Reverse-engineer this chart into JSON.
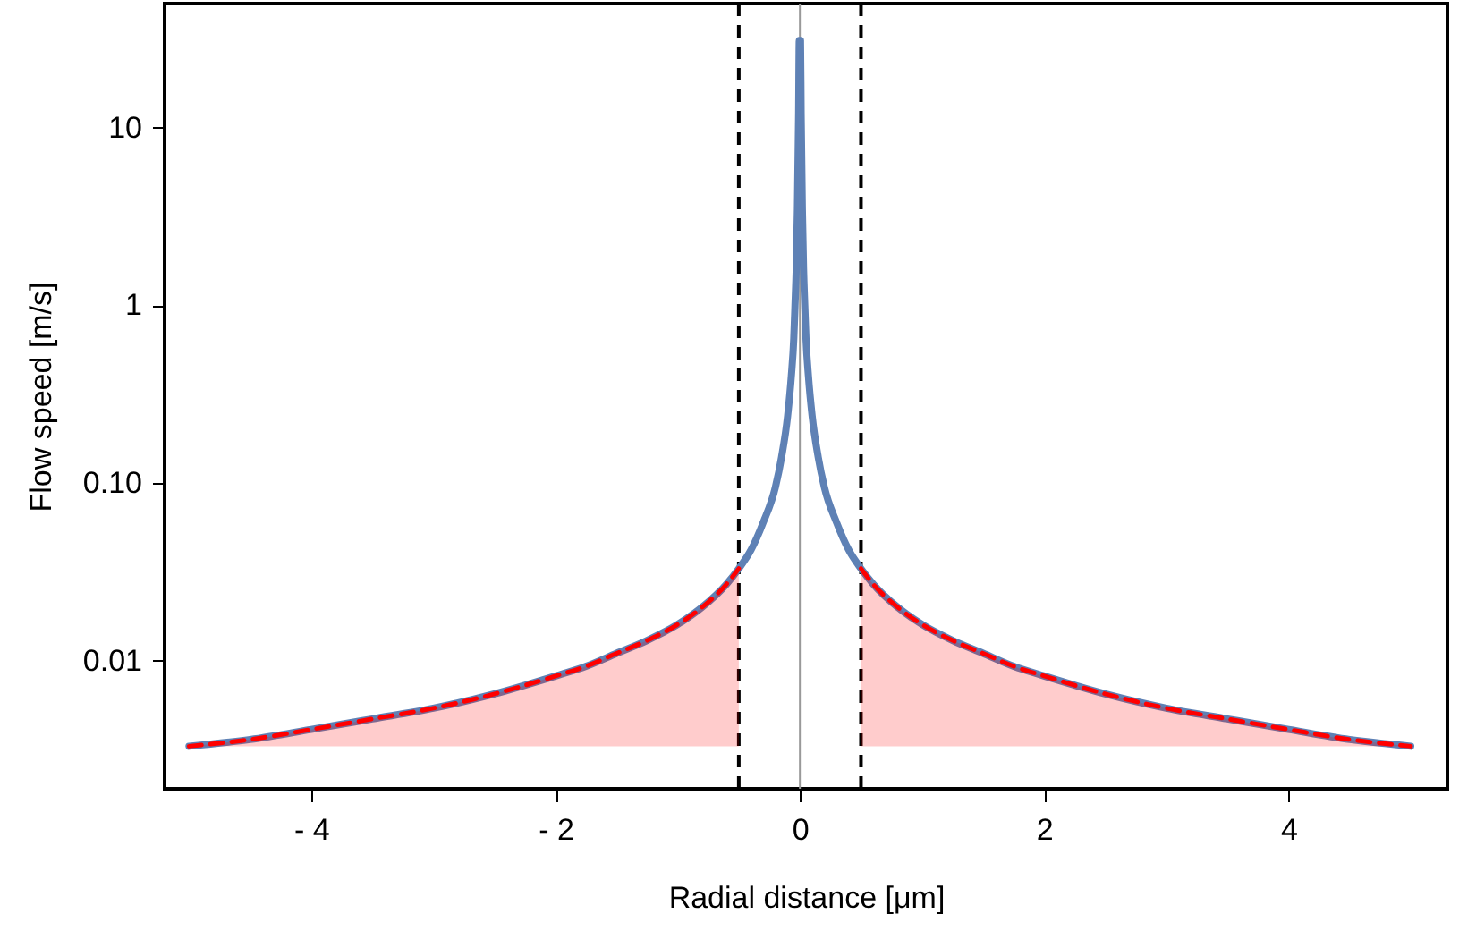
{
  "chart_data": {
    "type": "line",
    "xlabel": "Radial distance [μm]",
    "ylabel": "Flow speed [m/s]",
    "log": "y",
    "xlim": [
      -5.2,
      5.3
    ],
    "xticks": [
      {
        "value": -4,
        "label": "- 4"
      },
      {
        "value": -2,
        "label": "- 2"
      },
      0,
      2,
      4
    ],
    "ylim": [
      0.0019,
      50
    ],
    "yticks": [
      0.01,
      {
        "value": 0.1,
        "label": "0.10"
      },
      1,
      10
    ],
    "grid": false,
    "series": [
      {
        "color": "#5e81b5",
        "line_style": "solid",
        "x": [
          -5,
          -4.5,
          -4,
          -3.5,
          -3,
          -2.5,
          -2,
          -1.75,
          -1.5,
          -1.25,
          -1,
          -0.8,
          -0.6,
          -0.5,
          -0.4,
          -0.3,
          -0.2,
          -0.15,
          -0.1,
          -0.07,
          -0.05,
          -0.04,
          -0.03,
          -0.02,
          -0.01,
          -0.005,
          0.005,
          0.01,
          0.02,
          0.03,
          0.04,
          0.05,
          0.07,
          0.1,
          0.15,
          0.2,
          0.3,
          0.4,
          0.5,
          0.6,
          0.8,
          1,
          1.25,
          1.5,
          1.75,
          2,
          2.5,
          3,
          3.5,
          4,
          4.5,
          5
        ],
        "values": [
          0.0033,
          0.0036,
          0.0041,
          0.0047,
          0.0054,
          0.0065,
          0.0082,
          0.0093,
          0.011,
          0.013,
          0.016,
          0.02,
          0.027,
          0.033,
          0.042,
          0.06,
          0.095,
          0.14,
          0.24,
          0.4,
          0.65,
          1,
          1.6,
          3.5,
          12,
          31,
          31,
          12,
          3.5,
          1.6,
          1,
          0.65,
          0.4,
          0.24,
          0.14,
          0.095,
          0.06,
          0.042,
          0.033,
          0.027,
          0.02,
          0.016,
          0.013,
          0.011,
          0.0093,
          0.0082,
          0.0065,
          0.0054,
          0.0047,
          0.0041,
          0.0036,
          0.0033
        ]
      },
      {
        "color": "#ff0000",
        "line_style": "dashed",
        "x": [
          -5,
          -4.5,
          -4,
          -3.5,
          -3,
          -2.5,
          -2,
          -1.75,
          -1.5,
          -1.25,
          -1,
          -0.8,
          -0.6,
          -0.5,
          0,
          0.5,
          0.6,
          0.8,
          1,
          1.25,
          1.5,
          1.75,
          2,
          2.5,
          3,
          3.5,
          4,
          4.5,
          5
        ],
        "values": [
          0.0033,
          0.0036,
          0.0041,
          0.0047,
          0.0054,
          0.0065,
          0.0082,
          0.0093,
          0.011,
          0.013,
          0.016,
          0.02,
          0.027,
          0.033,
          null,
          0.033,
          0.027,
          0.02,
          0.016,
          0.013,
          0.011,
          0.0093,
          0.0082,
          0.0065,
          0.0054,
          0.0047,
          0.0041,
          0.0036,
          0.0033
        ],
        "lower": [
          0.0033,
          0.0033,
          0.0033,
          0.0033,
          0.0033,
          0.0033,
          0.0033,
          0.0033,
          0.0033,
          0.0033,
          0.0033,
          0.0033,
          0.0033,
          0.0033,
          null,
          0.0033,
          0.0033,
          0.0033,
          0.0033,
          0.0033,
          0.0033,
          0.0033,
          0.0033,
          0.0033,
          0.0033,
          0.0033,
          0.0033,
          0.0033,
          0.0033
        ],
        "upper": [
          0.0033,
          0.0036,
          0.0041,
          0.0047,
          0.0054,
          0.0065,
          0.0082,
          0.0093,
          0.011,
          0.013,
          0.016,
          0.02,
          0.027,
          0.033,
          null,
          0.033,
          0.027,
          0.02,
          0.016,
          0.013,
          0.011,
          0.0093,
          0.0082,
          0.0065,
          0.0054,
          0.0047,
          0.0041,
          0.0036,
          0.0033
        ]
      }
    ],
    "ref_lines": [
      {
        "axis": "x",
        "value": 0,
        "color": "#999999",
        "line_style": "solid"
      },
      {
        "axis": "x",
        "value": -0.5,
        "color": "#000000",
        "line_style": "dashed"
      },
      {
        "axis": "x",
        "value": 0.5,
        "color": "#000000",
        "line_style": "dashed"
      }
    ]
  }
}
